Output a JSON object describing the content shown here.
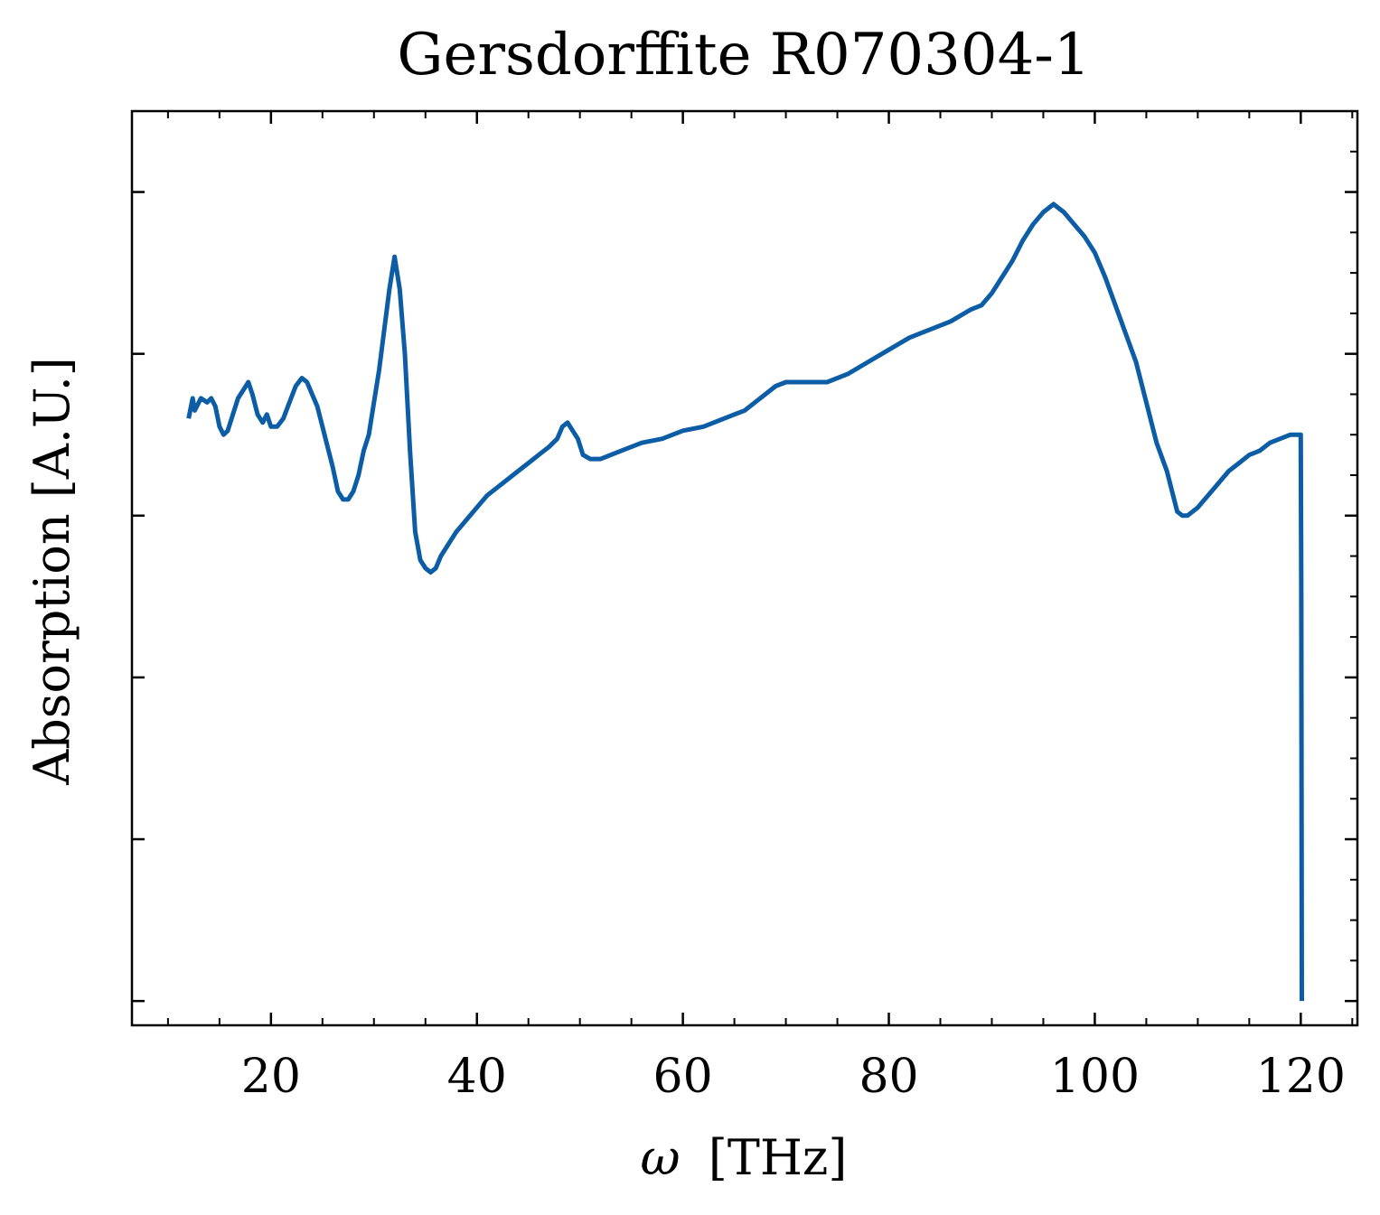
{
  "chart_data": {
    "type": "line",
    "title": "Gersdorffite R070304-1",
    "xlabel_symbol": "ω",
    "xlabel_unit": "[THz]",
    "ylabel": "Absorption [A.U.]",
    "xlim": [
      6.5,
      125.5
    ],
    "ylim": [
      -0.03,
      1.1
    ],
    "x_ticks": [
      20,
      40,
      60,
      80,
      100,
      120
    ],
    "y_ticks": [
      0.0,
      0.2,
      0.4,
      0.6,
      0.8,
      1.0
    ],
    "y_tick_labels_shown": false,
    "grid": false,
    "legend": "none",
    "line_color": "#0C5DA5",
    "series": [
      {
        "x": [
          12.0,
          12.4,
          12.6,
          12.8,
          13.2,
          13.8,
          14.2,
          14.6,
          15.0,
          15.4,
          15.8,
          16.3,
          16.8,
          17.3,
          17.8,
          18.2,
          18.7,
          19.2,
          19.6,
          20.0,
          20.6,
          21.2,
          21.8,
          22.4,
          23.0,
          23.5,
          24.0,
          24.5,
          25.0,
          25.5,
          26.0,
          26.5,
          27.0,
          27.5,
          28.0,
          28.5,
          29.0,
          29.5,
          30.0,
          30.5,
          31.0,
          31.5,
          32.0,
          32.5,
          33.0,
          33.5,
          34.0,
          34.5,
          35.0,
          35.5,
          36.0,
          36.5,
          37.0,
          38.0,
          39.0,
          40.0,
          41.0,
          42.0,
          43.0,
          44.0,
          45.0,
          46.0,
          47.0,
          47.8,
          48.3,
          48.8,
          49.3,
          49.8,
          50.3,
          51.0,
          52.0,
          53.0,
          54.0,
          56.0,
          58.0,
          60.0,
          62.0,
          63.0,
          64.0,
          65.0,
          66.0,
          67.0,
          68.0,
          69.0,
          70.0,
          72.0,
          74.0,
          76.0,
          78.0,
          80.0,
          82.0,
          84.0,
          86.0,
          88.0,
          89.0,
          90.0,
          91.0,
          92.0,
          93.0,
          94.0,
          95.0,
          96.0,
          96.5,
          97.0,
          98.0,
          99.0,
          100.0,
          101.0,
          102.0,
          103.0,
          104.0,
          105.0,
          106.0,
          107.0,
          108.0,
          108.5,
          109.0,
          109.5,
          110.0,
          111.0,
          112.0,
          113.0,
          114.0,
          115.0,
          116.0,
          117.0,
          118.0,
          119.0,
          119.8,
          120.0,
          120.05,
          120.1
        ],
        "y": [
          0.72,
          0.745,
          0.73,
          0.735,
          0.745,
          0.74,
          0.745,
          0.735,
          0.71,
          0.7,
          0.705,
          0.725,
          0.745,
          0.755,
          0.765,
          0.75,
          0.725,
          0.715,
          0.725,
          0.71,
          0.71,
          0.72,
          0.74,
          0.76,
          0.77,
          0.765,
          0.75,
          0.735,
          0.71,
          0.685,
          0.66,
          0.63,
          0.62,
          0.62,
          0.63,
          0.65,
          0.68,
          0.7,
          0.74,
          0.78,
          0.83,
          0.88,
          0.92,
          0.88,
          0.8,
          0.68,
          0.58,
          0.545,
          0.535,
          0.53,
          0.535,
          0.55,
          0.56,
          0.58,
          0.595,
          0.61,
          0.625,
          0.635,
          0.645,
          0.655,
          0.665,
          0.675,
          0.685,
          0.695,
          0.71,
          0.715,
          0.705,
          0.695,
          0.675,
          0.67,
          0.67,
          0.675,
          0.68,
          0.69,
          0.695,
          0.705,
          0.71,
          0.715,
          0.72,
          0.725,
          0.73,
          0.74,
          0.75,
          0.76,
          0.765,
          0.765,
          0.765,
          0.775,
          0.79,
          0.805,
          0.82,
          0.83,
          0.84,
          0.855,
          0.86,
          0.875,
          0.895,
          0.915,
          0.94,
          0.96,
          0.975,
          0.985,
          0.98,
          0.975,
          0.96,
          0.945,
          0.925,
          0.895,
          0.86,
          0.825,
          0.79,
          0.74,
          0.69,
          0.655,
          0.605,
          0.6,
          0.6,
          0.605,
          0.61,
          0.625,
          0.64,
          0.655,
          0.665,
          0.675,
          0.68,
          0.69,
          0.695,
          0.7,
          0.7,
          0.7,
          0.5,
          0.0
        ]
      }
    ]
  }
}
